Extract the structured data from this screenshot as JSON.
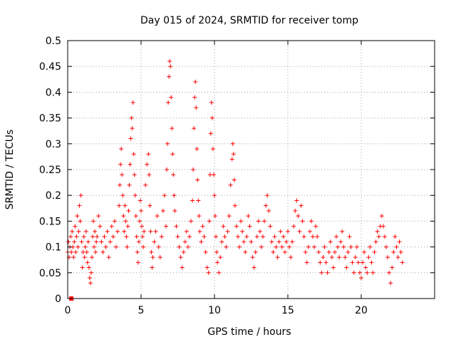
{
  "chart_data": {
    "type": "scatter",
    "title": "Day 015 of 2024, SRMTID for receiver tomp",
    "xlabel": "GPS time / hours",
    "ylabel": "SRMTID / TECUs",
    "xlim": [
      0,
      25
    ],
    "ylim": [
      0,
      0.5
    ],
    "xticks": [
      0,
      5,
      10,
      15,
      20
    ],
    "xtick_labels": [
      "0",
      "5",
      "10",
      "15",
      "20"
    ],
    "yticks": [
      0,
      0.05,
      0.1,
      0.15,
      0.2,
      0.25,
      0.3,
      0.35,
      0.4,
      0.45,
      0.5
    ],
    "ytick_labels": [
      "0",
      "0.05",
      "0.1",
      "0.15",
      "0.2",
      "0.25",
      "0.3",
      "0.35",
      "0.4",
      "0.45",
      "0.5"
    ],
    "grid": true,
    "marker": "+",
    "marker_color": "#ff0000",
    "series": [
      {
        "name": "SRMTID",
        "points": [
          [
            0.0,
            0.09
          ],
          [
            0.05,
            0.11
          ],
          [
            0.1,
            0.08
          ],
          [
            0.15,
            0.1
          ],
          [
            0.2,
            0.12
          ],
          [
            0.25,
            0.09
          ],
          [
            0.3,
            0.13
          ],
          [
            0.35,
            0.1
          ],
          [
            0.4,
            0.08
          ],
          [
            0.45,
            0.11
          ],
          [
            0.5,
            0.14
          ],
          [
            0.55,
            0.09
          ],
          [
            0.6,
            0.12
          ],
          [
            0.65,
            0.16
          ],
          [
            0.7,
            0.1
          ],
          [
            0.75,
            0.13
          ],
          [
            0.8,
            0.18
          ],
          [
            0.85,
            0.15
          ],
          [
            0.9,
            0.2
          ],
          [
            0.95,
            0.11
          ],
          [
            1.0,
            0.06
          ],
          [
            1.05,
            0.09
          ],
          [
            1.1,
            0.12
          ],
          [
            1.15,
            0.08
          ],
          [
            1.2,
            0.1
          ],
          [
            1.25,
            0.13
          ],
          [
            1.3,
            0.09
          ],
          [
            1.35,
            0.07
          ],
          [
            1.4,
            0.11
          ],
          [
            1.45,
            0.06
          ],
          [
            1.5,
            0.04
          ],
          [
            1.55,
            0.03
          ],
          [
            1.6,
            0.05
          ],
          [
            1.65,
            0.08
          ],
          [
            1.7,
            0.12
          ],
          [
            1.75,
            0.15
          ],
          [
            1.8,
            0.1
          ],
          [
            1.85,
            0.13
          ],
          [
            1.9,
            0.09
          ],
          [
            1.95,
            0.11
          ],
          [
            2.0,
            0.12
          ],
          [
            2.1,
            0.16
          ],
          [
            2.2,
            0.14
          ],
          [
            2.3,
            0.11
          ],
          [
            2.4,
            0.09
          ],
          [
            2.5,
            0.12
          ],
          [
            2.6,
            0.1
          ],
          [
            2.7,
            0.13
          ],
          [
            2.8,
            0.08
          ],
          [
            2.9,
            0.11
          ],
          [
            3.0,
            0.14
          ],
          [
            3.1,
            0.12
          ],
          [
            3.2,
            0.15
          ],
          [
            3.3,
            0.1
          ],
          [
            3.4,
            0.13
          ],
          [
            3.5,
            0.18
          ],
          [
            3.55,
            0.22
          ],
          [
            3.6,
            0.26
          ],
          [
            3.65,
            0.29
          ],
          [
            3.7,
            0.24
          ],
          [
            3.75,
            0.2
          ],
          [
            3.8,
            0.16
          ],
          [
            3.85,
            0.13
          ],
          [
            3.9,
            0.18
          ],
          [
            3.95,
            0.15
          ],
          [
            4.0,
            0.12
          ],
          [
            4.05,
            0.1
          ],
          [
            4.1,
            0.14
          ],
          [
            4.15,
            0.17
          ],
          [
            4.2,
            0.22
          ],
          [
            4.25,
            0.26
          ],
          [
            4.3,
            0.31
          ],
          [
            4.35,
            0.35
          ],
          [
            4.4,
            0.33
          ],
          [
            4.45,
            0.38
          ],
          [
            4.5,
            0.28
          ],
          [
            4.55,
            0.24
          ],
          [
            4.6,
            0.2
          ],
          [
            4.65,
            0.16
          ],
          [
            4.7,
            0.12
          ],
          [
            4.75,
            0.09
          ],
          [
            4.8,
            0.07
          ],
          [
            4.85,
            0.11
          ],
          [
            4.9,
            0.15
          ],
          [
            4.95,
            0.19
          ],
          [
            5.0,
            0.17
          ],
          [
            5.05,
            0.14
          ],
          [
            5.1,
            0.12
          ],
          [
            5.15,
            0.1
          ],
          [
            5.2,
            0.13
          ],
          [
            5.3,
            0.22
          ],
          [
            5.4,
            0.26
          ],
          [
            5.5,
            0.28
          ],
          [
            5.55,
            0.24
          ],
          [
            5.6,
            0.18
          ],
          [
            5.65,
            0.13
          ],
          [
            5.7,
            0.09
          ],
          [
            5.75,
            0.06
          ],
          [
            5.8,
            0.08
          ],
          [
            5.9,
            0.11
          ],
          [
            6.0,
            0.13
          ],
          [
            6.1,
            0.16
          ],
          [
            6.2,
            0.1
          ],
          [
            6.3,
            0.08
          ],
          [
            6.4,
            0.12
          ],
          [
            6.5,
            0.17
          ],
          [
            6.6,
            0.2
          ],
          [
            6.7,
            0.14
          ],
          [
            6.75,
            0.25
          ],
          [
            6.8,
            0.3
          ],
          [
            6.85,
            0.38
          ],
          [
            6.9,
            0.43
          ],
          [
            6.95,
            0.46
          ],
          [
            7.0,
            0.45
          ],
          [
            7.05,
            0.39
          ],
          [
            7.1,
            0.33
          ],
          [
            7.15,
            0.28
          ],
          [
            7.2,
            0.24
          ],
          [
            7.25,
            0.2
          ],
          [
            7.3,
            0.17
          ],
          [
            7.4,
            0.14
          ],
          [
            7.5,
            0.12
          ],
          [
            7.6,
            0.1
          ],
          [
            7.7,
            0.08
          ],
          [
            7.8,
            0.06
          ],
          [
            7.9,
            0.09
          ],
          [
            8.0,
            0.11
          ],
          [
            8.1,
            0.13
          ],
          [
            8.2,
            0.1
          ],
          [
            8.3,
            0.12
          ],
          [
            8.4,
            0.15
          ],
          [
            8.5,
            0.19
          ],
          [
            8.55,
            0.25
          ],
          [
            8.6,
            0.33
          ],
          [
            8.65,
            0.39
          ],
          [
            8.7,
            0.42
          ],
          [
            8.75,
            0.37
          ],
          [
            8.8,
            0.29
          ],
          [
            8.85,
            0.23
          ],
          [
            8.9,
            0.19
          ],
          [
            8.95,
            0.16
          ],
          [
            9.0,
            0.13
          ],
          [
            9.1,
            0.11
          ],
          [
            9.2,
            0.14
          ],
          [
            9.3,
            0.12
          ],
          [
            9.4,
            0.09
          ],
          [
            9.5,
            0.06
          ],
          [
            9.6,
            0.05
          ],
          [
            9.65,
            0.15
          ],
          [
            9.7,
            0.24
          ],
          [
            9.75,
            0.32
          ],
          [
            9.8,
            0.38
          ],
          [
            9.85,
            0.35
          ],
          [
            9.9,
            0.29
          ],
          [
            9.95,
            0.24
          ],
          [
            10.0,
            0.2
          ],
          [
            10.05,
            0.16
          ],
          [
            10.1,
            0.12
          ],
          [
            10.15,
            0.09
          ],
          [
            10.2,
            0.07
          ],
          [
            10.3,
            0.05
          ],
          [
            10.4,
            0.08
          ],
          [
            10.5,
            0.11
          ],
          [
            10.6,
            0.14
          ],
          [
            10.7,
            0.12
          ],
          [
            10.8,
            0.1
          ],
          [
            10.9,
            0.13
          ],
          [
            11.0,
            0.16
          ],
          [
            11.1,
            0.22
          ],
          [
            11.2,
            0.27
          ],
          [
            11.25,
            0.3
          ],
          [
            11.3,
            0.28
          ],
          [
            11.35,
            0.23
          ],
          [
            11.4,
            0.18
          ],
          [
            11.5,
            0.14
          ],
          [
            11.6,
            0.12
          ],
          [
            11.7,
            0.1
          ],
          [
            11.8,
            0.15
          ],
          [
            11.9,
            0.13
          ],
          [
            12.0,
            0.11
          ],
          [
            12.1,
            0.09
          ],
          [
            12.2,
            0.12
          ],
          [
            12.3,
            0.16
          ],
          [
            12.4,
            0.14
          ],
          [
            12.5,
            0.11
          ],
          [
            12.6,
            0.08
          ],
          [
            12.7,
            0.06
          ],
          [
            12.8,
            0.09
          ],
          [
            12.9,
            0.12
          ],
          [
            13.0,
            0.15
          ],
          [
            13.1,
            0.13
          ],
          [
            13.2,
            0.1
          ],
          [
            13.3,
            0.12
          ],
          [
            13.4,
            0.15
          ],
          [
            13.5,
            0.18
          ],
          [
            13.6,
            0.2
          ],
          [
            13.7,
            0.17
          ],
          [
            13.8,
            0.14
          ],
          [
            13.9,
            0.11
          ],
          [
            14.0,
            0.09
          ],
          [
            14.1,
            0.12
          ],
          [
            14.2,
            0.1
          ],
          [
            14.3,
            0.08
          ],
          [
            14.4,
            0.11
          ],
          [
            14.5,
            0.13
          ],
          [
            14.6,
            0.1
          ],
          [
            14.7,
            0.12
          ],
          [
            14.8,
            0.09
          ],
          [
            14.9,
            0.11
          ],
          [
            15.0,
            0.13
          ],
          [
            15.1,
            0.1
          ],
          [
            15.2,
            0.08
          ],
          [
            15.3,
            0.11
          ],
          [
            15.4,
            0.14
          ],
          [
            15.5,
            0.17
          ],
          [
            15.6,
            0.19
          ],
          [
            15.7,
            0.16
          ],
          [
            15.8,
            0.13
          ],
          [
            15.9,
            0.18
          ],
          [
            16.0,
            0.15
          ],
          [
            16.1,
            0.12
          ],
          [
            16.2,
            0.09
          ],
          [
            16.3,
            0.07
          ],
          [
            16.4,
            0.1
          ],
          [
            16.5,
            0.13
          ],
          [
            16.6,
            0.15
          ],
          [
            16.7,
            0.12
          ],
          [
            16.8,
            0.1
          ],
          [
            16.9,
            0.14
          ],
          [
            17.0,
            0.12
          ],
          [
            17.1,
            0.09
          ],
          [
            17.2,
            0.07
          ],
          [
            17.3,
            0.05
          ],
          [
            17.4,
            0.08
          ],
          [
            17.5,
            0.1
          ],
          [
            17.6,
            0.07
          ],
          [
            17.7,
            0.05
          ],
          [
            17.8,
            0.09
          ],
          [
            17.9,
            0.11
          ],
          [
            18.0,
            0.08
          ],
          [
            18.1,
            0.06
          ],
          [
            18.2,
            0.09
          ],
          [
            18.3,
            0.12
          ],
          [
            18.4,
            0.1
          ],
          [
            18.5,
            0.08
          ],
          [
            18.6,
            0.11
          ],
          [
            18.7,
            0.13
          ],
          [
            18.8,
            0.1
          ],
          [
            18.9,
            0.08
          ],
          [
            19.0,
            0.06
          ],
          [
            19.1,
            0.09
          ],
          [
            19.2,
            0.12
          ],
          [
            19.3,
            0.1
          ],
          [
            19.4,
            0.07
          ],
          [
            19.5,
            0.05
          ],
          [
            19.6,
            0.08
          ],
          [
            19.7,
            0.1
          ],
          [
            19.8,
            0.07
          ],
          [
            19.9,
            0.05
          ],
          [
            20.0,
            0.04
          ],
          [
            20.1,
            0.07
          ],
          [
            20.2,
            0.09
          ],
          [
            20.3,
            0.06
          ],
          [
            20.4,
            0.05
          ],
          [
            20.5,
            0.08
          ],
          [
            20.6,
            0.1
          ],
          [
            20.7,
            0.07
          ],
          [
            20.8,
            0.05
          ],
          [
            20.9,
            0.09
          ],
          [
            21.0,
            0.11
          ],
          [
            21.1,
            0.13
          ],
          [
            21.2,
            0.12
          ],
          [
            21.3,
            0.14
          ],
          [
            21.4,
            0.16
          ],
          [
            21.5,
            0.14
          ],
          [
            21.6,
            0.12
          ],
          [
            21.7,
            0.1
          ],
          [
            21.8,
            0.08
          ],
          [
            21.9,
            0.05
          ],
          [
            22.0,
            0.03
          ],
          [
            22.1,
            0.06
          ],
          [
            22.2,
            0.09
          ],
          [
            22.3,
            0.12
          ],
          [
            22.4,
            0.1
          ],
          [
            22.5,
            0.08
          ],
          [
            22.6,
            0.11
          ],
          [
            22.7,
            0.09
          ],
          [
            22.8,
            0.07
          ]
        ]
      }
    ],
    "origin_marker": {
      "x": 0.25,
      "y": 0
    }
  }
}
